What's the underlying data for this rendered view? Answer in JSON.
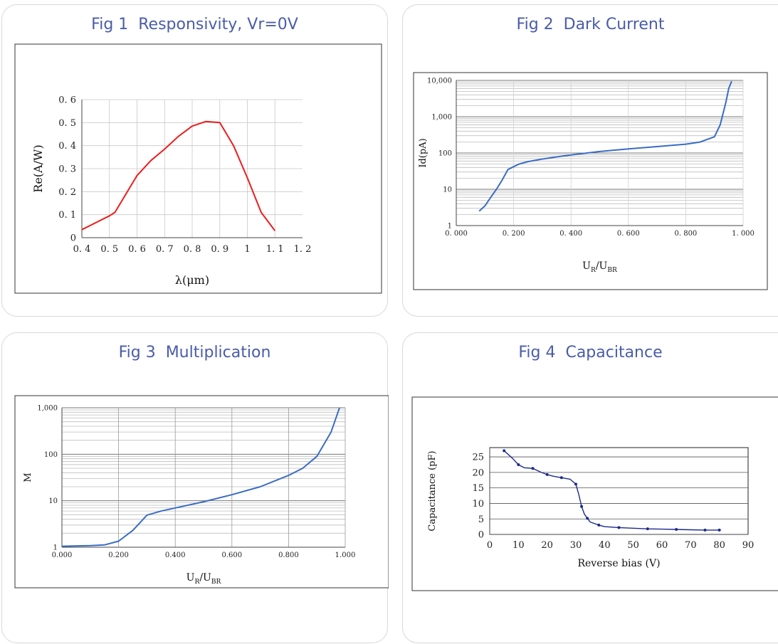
{
  "colors": {
    "title": "#4a5caa",
    "fig1_line": "#ee1c1c",
    "fig234_line": "#3a6cc4",
    "fig4_line": "#1c2a8a"
  },
  "chart_data": [
    {
      "id": "fig1",
      "type": "line",
      "title": "Fig 1  Responsivity, Vr=0V",
      "xlabel": "λ(μm)",
      "ylabel": "Re(A/W)",
      "xlim": [
        0.4,
        1.2
      ],
      "ylim": [
        0,
        0.6
      ],
      "x_ticks": [
        "0. 4",
        "0. 5",
        "0. 6",
        "0. 7",
        "0. 8",
        "0. 9",
        "1",
        "1. 1",
        "1. 2"
      ],
      "y_ticks": [
        "0",
        "0. 1",
        "0. 2",
        "0. 3",
        "0. 4",
        "0. 5",
        "0. 6"
      ],
      "grid": true,
      "series": [
        {
          "x": [
            0.4,
            0.45,
            0.5,
            0.52,
            0.55,
            0.6,
            0.65,
            0.7,
            0.75,
            0.8,
            0.85,
            0.9,
            0.95,
            1.0,
            1.05,
            1.1
          ],
          "y": [
            0.035,
            0.065,
            0.095,
            0.11,
            0.17,
            0.27,
            0.335,
            0.385,
            0.44,
            0.485,
            0.505,
            0.5,
            0.4,
            0.26,
            0.11,
            0.03
          ]
        }
      ]
    },
    {
      "id": "fig2",
      "type": "line",
      "title": "Fig 2  Dark Current",
      "xlabel": "U",
      "xlabel_sub1": "R",
      "xlabel_mid": "/U",
      "xlabel_sub2": "BR",
      "ylabel": "Id(pA)",
      "xlim": [
        0,
        1
      ],
      "ylim": [
        1,
        10000
      ],
      "log_y": true,
      "x_ticks": [
        "0. 000",
        "0. 200",
        "0. 400",
        "0. 600",
        "0. 800",
        "1. 000"
      ],
      "y_ticks": [
        "1",
        "10",
        "100",
        "1,000",
        "10,000"
      ],
      "grid": true,
      "series": [
        {
          "x": [
            0.08,
            0.1,
            0.12,
            0.14,
            0.16,
            0.18,
            0.2,
            0.22,
            0.25,
            0.3,
            0.35,
            0.4,
            0.5,
            0.6,
            0.7,
            0.8,
            0.85,
            0.9,
            0.92,
            0.94,
            0.95,
            0.96
          ],
          "y": [
            2.5,
            3.5,
            6,
            10,
            18,
            35,
            42,
            50,
            58,
            68,
            78,
            88,
            110,
            130,
            150,
            175,
            200,
            280,
            600,
            2500,
            6000,
            9500
          ]
        }
      ]
    },
    {
      "id": "fig3",
      "type": "line",
      "title": "Fig 3  Multiplication",
      "xlabel": "U",
      "xlabel_sub1": "R",
      "xlabel_mid": "/U",
      "xlabel_sub2": "BR",
      "ylabel": "M",
      "xlim": [
        0,
        1
      ],
      "ylim": [
        1,
        1000
      ],
      "log_y": true,
      "x_ticks": [
        "0.000",
        "0.200",
        "0.400",
        "0.600",
        "0.800",
        "1.000"
      ],
      "y_ticks": [
        "1",
        "10",
        "100",
        "1,000"
      ],
      "grid": true,
      "series": [
        {
          "x": [
            0,
            0.1,
            0.15,
            0.2,
            0.25,
            0.28,
            0.3,
            0.35,
            0.4,
            0.5,
            0.6,
            0.7,
            0.8,
            0.85,
            0.9,
            0.95,
            0.98
          ],
          "y": [
            1.05,
            1.08,
            1.12,
            1.35,
            2.3,
            3.6,
            4.9,
            6.0,
            7.0,
            9.5,
            13.5,
            20,
            35,
            50,
            90,
            300,
            1000
          ]
        }
      ]
    },
    {
      "id": "fig4",
      "type": "line",
      "title": "Fig 4  Capacitance",
      "xlabel": "Reverse bias (V)",
      "ylabel": "Capacitance (pF)",
      "xlim": [
        0,
        90
      ],
      "ylim": [
        0,
        28
      ],
      "x_ticks": [
        "0",
        "10",
        "20",
        "30",
        "40",
        "50",
        "60",
        "70",
        "80",
        "90"
      ],
      "y_ticks": [
        "0",
        "5",
        "10",
        "15",
        "20",
        "25"
      ],
      "grid": true,
      "series": [
        {
          "x": [
            5,
            8,
            10,
            12,
            15,
            18,
            20,
            22,
            25,
            28,
            30,
            31,
            32,
            33,
            34,
            35,
            38,
            40,
            45,
            50,
            55,
            60,
            65,
            70,
            75,
            80
          ],
          "y": [
            27,
            24.5,
            22.5,
            21.5,
            21.3,
            20,
            19.3,
            18.8,
            18.3,
            17.8,
            16.2,
            13,
            9,
            6.5,
            5.2,
            4,
            3,
            2.5,
            2.2,
            2.0,
            1.8,
            1.7,
            1.6,
            1.5,
            1.4,
            1.4
          ]
        }
      ]
    }
  ]
}
